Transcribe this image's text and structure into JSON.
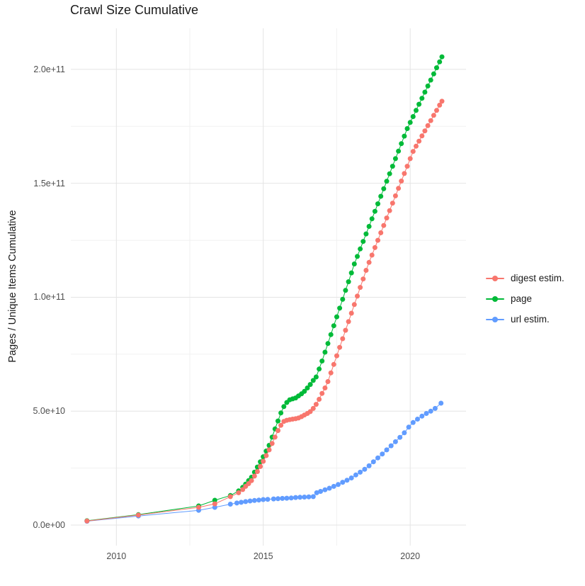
{
  "title": "Crawl Size Cumulative",
  "y_axis": {
    "label": "Pages / Unique Items Cumulative",
    "ticks": [
      {
        "label": "0.0e+00",
        "value": 0
      },
      {
        "label": "5.0e+10",
        "value": 50
      },
      {
        "label": "1.0e+11",
        "value": 100
      },
      {
        "label": "1.5e+11",
        "value": 150
      },
      {
        "label": "2.0e+11",
        "value": 200
      }
    ],
    "minor_values": [
      25,
      75,
      125,
      175
    ]
  },
  "x_axis": {
    "ticks": [
      {
        "label": "2010",
        "value": 2010
      },
      {
        "label": "2015",
        "value": 2015
      },
      {
        "label": "2020",
        "value": 2020
      }
    ],
    "minor_values": [
      2012.5,
      2017.5
    ]
  },
  "legend": {
    "items": [
      {
        "label": "digest estim.",
        "color": "#F8766D"
      },
      {
        "label": "page",
        "color": "#00BA38"
      },
      {
        "label": "url estim.",
        "color": "#619CFF"
      }
    ]
  },
  "theme": {
    "background": "#ffffff",
    "grid_major": "#e4e4e4",
    "grid_minor": "#f1f1f1",
    "tick_text": "#4d4d4d",
    "title_text": "#1a1a1a"
  },
  "chart_data": {
    "type": "scatter",
    "title": "Crawl Size Cumulative",
    "xlabel": "",
    "ylabel": "Pages / Unique Items Cumulative",
    "y_unit": "billions (1e9) of pages / unique items",
    "xlim": [
      2008.45,
      2021.9
    ],
    "ylim": [
      -9,
      218
    ],
    "grid": true,
    "legend_position": "right",
    "series": [
      {
        "name": "page",
        "color": "#00BA38",
        "points": [
          [
            2009.0,
            1.9
          ],
          [
            2010.75,
            4.6
          ],
          [
            2012.8,
            8.4
          ],
          [
            2013.35,
            10.9
          ],
          [
            2013.88,
            13.0
          ],
          [
            2014.16,
            15.0
          ],
          [
            2014.3,
            16.6
          ],
          [
            2014.4,
            18.0
          ],
          [
            2014.5,
            19.5
          ],
          [
            2014.6,
            21.0
          ],
          [
            2014.7,
            23.2
          ],
          [
            2014.8,
            25.5
          ],
          [
            2014.9,
            27.8
          ],
          [
            2015.0,
            30.0
          ],
          [
            2015.1,
            32.5
          ],
          [
            2015.2,
            35.0
          ],
          [
            2015.3,
            38.6
          ],
          [
            2015.4,
            42.2
          ],
          [
            2015.5,
            45.7
          ],
          [
            2015.6,
            49.2
          ],
          [
            2015.7,
            52.0
          ],
          [
            2015.8,
            53.8
          ],
          [
            2015.9,
            55.0
          ],
          [
            2016.0,
            55.4
          ],
          [
            2016.1,
            55.8
          ],
          [
            2016.2,
            56.7
          ],
          [
            2016.3,
            57.6
          ],
          [
            2016.4,
            58.7
          ],
          [
            2016.5,
            60.2
          ],
          [
            2016.6,
            61.7
          ],
          [
            2016.7,
            63.5
          ],
          [
            2016.8,
            65.0
          ],
          [
            2016.9,
            68.5
          ],
          [
            2017.0,
            72.0
          ],
          [
            2017.1,
            75.9
          ],
          [
            2017.2,
            79.7
          ],
          [
            2017.3,
            83.6
          ],
          [
            2017.4,
            87.5
          ],
          [
            2017.5,
            91.4
          ],
          [
            2017.6,
            95.2
          ],
          [
            2017.7,
            99.1
          ],
          [
            2017.8,
            103.0
          ],
          [
            2017.9,
            106.8
          ],
          [
            2018.0,
            110.7
          ],
          [
            2018.1,
            114.6
          ],
          [
            2018.2,
            117.9
          ],
          [
            2018.3,
            121.2
          ],
          [
            2018.4,
            124.5
          ],
          [
            2018.5,
            127.8
          ],
          [
            2018.6,
            131.1
          ],
          [
            2018.7,
            134.4
          ],
          [
            2018.8,
            137.7
          ],
          [
            2018.9,
            141.0
          ],
          [
            2019.0,
            144.3
          ],
          [
            2019.1,
            147.6
          ],
          [
            2019.2,
            150.9
          ],
          [
            2019.3,
            154.2
          ],
          [
            2019.4,
            157.5
          ],
          [
            2019.5,
            160.8
          ],
          [
            2019.6,
            164.1
          ],
          [
            2019.7,
            167.4
          ],
          [
            2019.8,
            170.7
          ],
          [
            2019.9,
            174.0
          ],
          [
            2020.0,
            176.7
          ],
          [
            2020.1,
            179.3
          ],
          [
            2020.2,
            182.0
          ],
          [
            2020.3,
            184.7
          ],
          [
            2020.4,
            187.3
          ],
          [
            2020.5,
            190.0
          ],
          [
            2020.6,
            192.7
          ],
          [
            2020.7,
            195.3
          ],
          [
            2020.8,
            198.0
          ],
          [
            2020.9,
            200.7
          ],
          [
            2021.0,
            203.3
          ],
          [
            2021.08,
            205.5
          ]
        ]
      },
      {
        "name": "url estim.",
        "color": "#619CFF",
        "points": [
          [
            2009.0,
            1.7
          ],
          [
            2010.75,
            4.0
          ],
          [
            2012.8,
            6.5
          ],
          [
            2013.35,
            7.8
          ],
          [
            2013.88,
            9.2
          ],
          [
            2014.1,
            9.7
          ],
          [
            2014.25,
            10.0
          ],
          [
            2014.4,
            10.3
          ],
          [
            2014.55,
            10.6
          ],
          [
            2014.7,
            10.8
          ],
          [
            2014.85,
            11.0
          ],
          [
            2015.0,
            11.2
          ],
          [
            2015.15,
            11.3
          ],
          [
            2015.35,
            11.5
          ],
          [
            2015.5,
            11.6
          ],
          [
            2015.65,
            11.7
          ],
          [
            2015.8,
            11.8
          ],
          [
            2015.95,
            11.9
          ],
          [
            2016.1,
            12.1
          ],
          [
            2016.25,
            12.2
          ],
          [
            2016.4,
            12.3
          ],
          [
            2016.55,
            12.4
          ],
          [
            2016.7,
            12.5
          ],
          [
            2016.82,
            14.2
          ],
          [
            2016.95,
            14.8
          ],
          [
            2017.1,
            15.5
          ],
          [
            2017.25,
            16.2
          ],
          [
            2017.4,
            17.0
          ],
          [
            2017.55,
            17.8
          ],
          [
            2017.7,
            18.8
          ],
          [
            2017.85,
            19.7
          ],
          [
            2018.0,
            20.7
          ],
          [
            2018.15,
            22.0
          ],
          [
            2018.3,
            23.2
          ],
          [
            2018.45,
            24.5
          ],
          [
            2018.6,
            26.0
          ],
          [
            2018.75,
            27.8
          ],
          [
            2018.9,
            29.5
          ],
          [
            2019.05,
            31.2
          ],
          [
            2019.2,
            33.0
          ],
          [
            2019.35,
            34.8
          ],
          [
            2019.5,
            36.6
          ],
          [
            2019.65,
            38.5
          ],
          [
            2019.8,
            40.5
          ],
          [
            2019.95,
            43.0
          ],
          [
            2020.1,
            45.0
          ],
          [
            2020.25,
            46.5
          ],
          [
            2020.4,
            47.8
          ],
          [
            2020.55,
            49.0
          ],
          [
            2020.7,
            50.0
          ],
          [
            2020.85,
            51.2
          ],
          [
            2021.05,
            53.5
          ]
        ]
      },
      {
        "name": "digest estim.",
        "color": "#F8766D",
        "points": [
          [
            2009.0,
            1.8
          ],
          [
            2010.75,
            4.4
          ],
          [
            2012.8,
            7.8
          ],
          [
            2013.35,
            9.3
          ],
          [
            2013.88,
            12.5
          ],
          [
            2014.16,
            14.2
          ],
          [
            2014.3,
            15.6
          ],
          [
            2014.4,
            17.0
          ],
          [
            2014.5,
            18.2
          ],
          [
            2014.6,
            19.5
          ],
          [
            2014.7,
            21.5
          ],
          [
            2014.8,
            23.5
          ],
          [
            2014.9,
            25.7
          ],
          [
            2015.0,
            28.0
          ],
          [
            2015.1,
            30.5
          ],
          [
            2015.2,
            33.0
          ],
          [
            2015.3,
            35.8
          ],
          [
            2015.4,
            38.6
          ],
          [
            2015.5,
            41.5
          ],
          [
            2015.6,
            43.8
          ],
          [
            2015.7,
            45.5
          ],
          [
            2015.8,
            46.0
          ],
          [
            2015.9,
            46.3
          ],
          [
            2016.0,
            46.5
          ],
          [
            2016.1,
            46.7
          ],
          [
            2016.2,
            47.0
          ],
          [
            2016.3,
            47.6
          ],
          [
            2016.4,
            48.3
          ],
          [
            2016.5,
            49.0
          ],
          [
            2016.6,
            49.8
          ],
          [
            2016.7,
            51.2
          ],
          [
            2016.8,
            53.0
          ],
          [
            2016.9,
            55.2
          ],
          [
            2017.0,
            57.8
          ],
          [
            2017.1,
            60.2
          ],
          [
            2017.2,
            63.0
          ],
          [
            2017.3,
            66.8
          ],
          [
            2017.4,
            70.5
          ],
          [
            2017.5,
            74.3
          ],
          [
            2017.6,
            78.0
          ],
          [
            2017.7,
            81.8
          ],
          [
            2017.8,
            85.5
          ],
          [
            2017.9,
            89.3
          ],
          [
            2018.0,
            93.0
          ],
          [
            2018.1,
            96.8
          ],
          [
            2018.2,
            100.5
          ],
          [
            2018.3,
            104.3
          ],
          [
            2018.4,
            108.0
          ],
          [
            2018.5,
            111.8
          ],
          [
            2018.6,
            115.3
          ],
          [
            2018.7,
            118.5
          ],
          [
            2018.8,
            121.8
          ],
          [
            2018.9,
            125.0
          ],
          [
            2019.0,
            128.3
          ],
          [
            2019.1,
            131.5
          ],
          [
            2019.2,
            134.8
          ],
          [
            2019.3,
            138.0
          ],
          [
            2019.4,
            141.3
          ],
          [
            2019.5,
            144.5
          ],
          [
            2019.6,
            147.8
          ],
          [
            2019.7,
            151.0
          ],
          [
            2019.8,
            154.3
          ],
          [
            2019.9,
            157.5
          ],
          [
            2020.0,
            160.8
          ],
          [
            2020.1,
            164.0
          ],
          [
            2020.2,
            166.3
          ],
          [
            2020.3,
            168.5
          ],
          [
            2020.4,
            170.8
          ],
          [
            2020.5,
            173.0
          ],
          [
            2020.6,
            175.3
          ],
          [
            2020.7,
            177.5
          ],
          [
            2020.8,
            179.8
          ],
          [
            2020.9,
            182.0
          ],
          [
            2021.0,
            184.3
          ],
          [
            2021.08,
            186.0
          ]
        ]
      }
    ]
  }
}
